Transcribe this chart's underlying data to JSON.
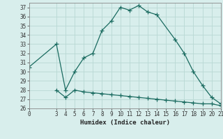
{
  "xlabel": "Humidex (Indice chaleur)",
  "background_color": "#d8eeec",
  "grid_color": "#b8d8d4",
  "line_color": "#1a6b60",
  "xlim": [
    0,
    21
  ],
  "ylim": [
    26,
    37.5
  ],
  "yticks": [
    26,
    27,
    28,
    29,
    30,
    31,
    32,
    33,
    34,
    35,
    36,
    37
  ],
  "xticks": [
    0,
    3,
    4,
    5,
    6,
    7,
    8,
    9,
    10,
    11,
    12,
    13,
    14,
    15,
    16,
    17,
    18,
    19,
    20,
    21
  ],
  "curve1_x": [
    0,
    3,
    4,
    5,
    6,
    7,
    8,
    9,
    10,
    11,
    12,
    13,
    14,
    16,
    17,
    18,
    19,
    20,
    21
  ],
  "curve1_y": [
    30.5,
    33.0,
    28.0,
    30.0,
    31.5,
    32.0,
    34.5,
    35.5,
    37.0,
    36.7,
    37.2,
    36.5,
    36.2,
    33.5,
    32.0,
    30.0,
    28.5,
    27.2,
    26.5
  ],
  "curve2_x": [
    3,
    4,
    5,
    6,
    7,
    8,
    9,
    10,
    11,
    12,
    13,
    14,
    15,
    16,
    17,
    18,
    19,
    20,
    21
  ],
  "curve2_y": [
    28.0,
    27.2,
    28.0,
    27.8,
    27.7,
    27.6,
    27.5,
    27.4,
    27.3,
    27.2,
    27.1,
    27.0,
    26.9,
    26.8,
    26.7,
    26.6,
    26.5,
    26.5,
    26.3
  ]
}
